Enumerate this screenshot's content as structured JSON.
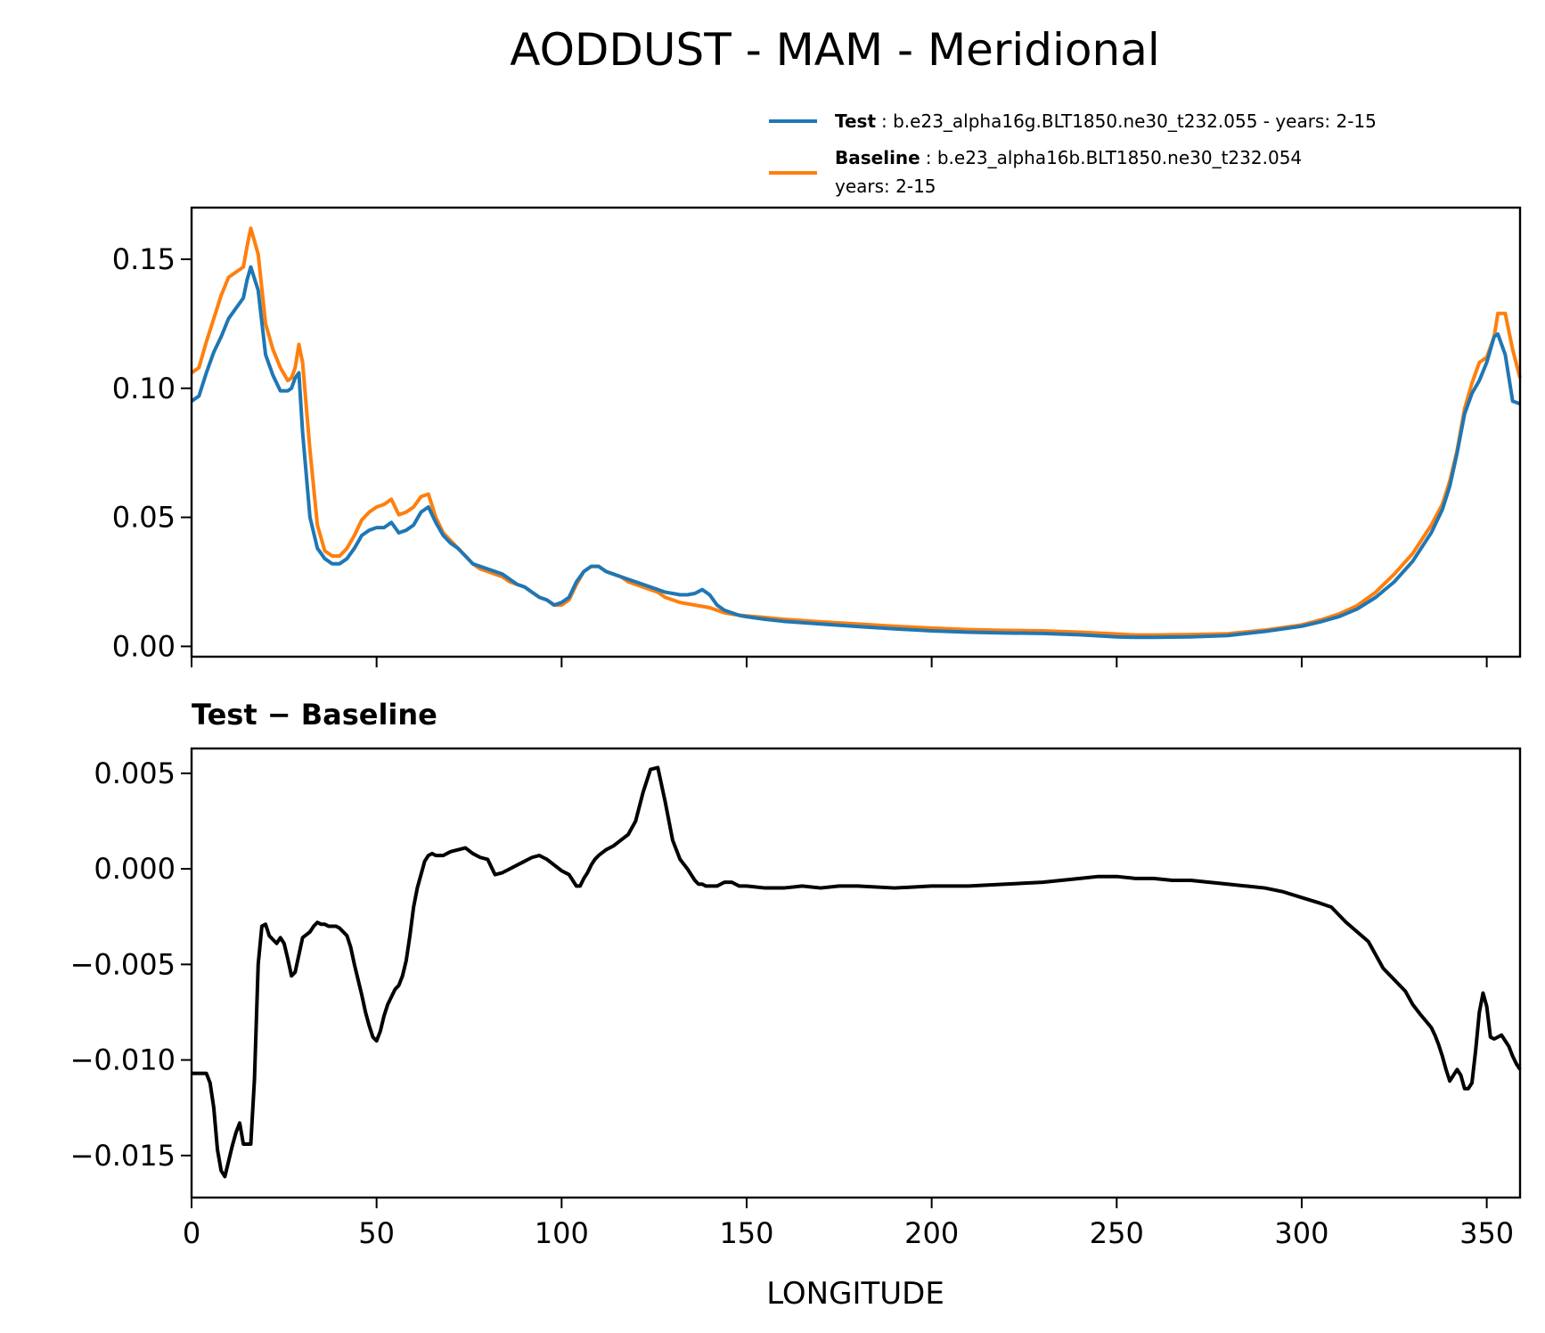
{
  "chart_data": [
    {
      "type": "line",
      "title": "AODDUST - MAM - Meridional",
      "xlabel": "",
      "ylabel": "",
      "xlim": [
        0,
        359
      ],
      "ylim": [
        -0.004,
        0.17
      ],
      "yticks": [
        "0.00",
        "0.05",
        "0.10",
        "0.15"
      ],
      "ytick_values": [
        0.0,
        0.05,
        0.1,
        0.15
      ],
      "xticks": [
        0,
        50,
        100,
        150,
        200,
        250,
        300,
        350
      ],
      "legend": {
        "position": "above-right",
        "entries": [
          {
            "bold": "Test",
            "text": ": b.e23_alpha16g.BLT1850.ne30_t232.055 - years: 2-15",
            "text2": "",
            "color": "#1f77b4"
          },
          {
            "bold": "Baseline",
            "text": ": b.e23_alpha16b.BLT1850.ne30_t232.054",
            "text2": "years: 2-15",
            "color": "#ff7f0e"
          }
        ]
      },
      "x": [
        0,
        2,
        4,
        6,
        8,
        10,
        12,
        14,
        15,
        16,
        18,
        20,
        22,
        24,
        26,
        27,
        28,
        29,
        30,
        32,
        34,
        36,
        38,
        40,
        42,
        44,
        46,
        48,
        50,
        52,
        54,
        56,
        58,
        60,
        62,
        64,
        66,
        68,
        70,
        72,
        74,
        76,
        78,
        80,
        82,
        84,
        86,
        88,
        90,
        92,
        94,
        96,
        98,
        100,
        102,
        104,
        106,
        108,
        110,
        112,
        114,
        116,
        118,
        120,
        122,
        124,
        126,
        128,
        130,
        132,
        134,
        136,
        138,
        140,
        142,
        144,
        146,
        148,
        150,
        155,
        160,
        170,
        180,
        190,
        200,
        210,
        220,
        230,
        240,
        250,
        255,
        260,
        270,
        280,
        290,
        300,
        305,
        310,
        315,
        320,
        325,
        330,
        335,
        338,
        340,
        342,
        344,
        346,
        348,
        350,
        352,
        353,
        355,
        357,
        359
      ],
      "series": [
        {
          "name": "Test",
          "color": "#1f77b4",
          "values": [
            0.095,
            0.097,
            0.106,
            0.114,
            0.12,
            0.127,
            0.131,
            0.135,
            0.142,
            0.147,
            0.138,
            0.113,
            0.105,
            0.099,
            0.099,
            0.1,
            0.104,
            0.106,
            0.083,
            0.05,
            0.038,
            0.034,
            0.032,
            0.032,
            0.034,
            0.038,
            0.043,
            0.045,
            0.046,
            0.046,
            0.048,
            0.044,
            0.045,
            0.047,
            0.052,
            0.054,
            0.048,
            0.043,
            0.04,
            0.038,
            0.035,
            0.032,
            0.031,
            0.03,
            0.029,
            0.028,
            0.026,
            0.024,
            0.023,
            0.021,
            0.019,
            0.018,
            0.016,
            0.017,
            0.019,
            0.025,
            0.029,
            0.031,
            0.031,
            0.029,
            0.028,
            0.027,
            0.026,
            0.025,
            0.024,
            0.023,
            0.022,
            0.021,
            0.0205,
            0.02,
            0.02,
            0.0205,
            0.022,
            0.02,
            0.016,
            0.014,
            0.013,
            0.012,
            0.0115,
            0.0105,
            0.0097,
            0.0087,
            0.0077,
            0.0068,
            0.006,
            0.0055,
            0.0052,
            0.005,
            0.0045,
            0.0037,
            0.0035,
            0.0035,
            0.0037,
            0.0042,
            0.0058,
            0.0078,
            0.0095,
            0.0115,
            0.0145,
            0.019,
            0.025,
            0.033,
            0.044,
            0.053,
            0.062,
            0.075,
            0.09,
            0.098,
            0.103,
            0.11,
            0.12,
            0.121,
            0.113,
            0.095,
            0.094
          ]
        },
        {
          "name": "Baseline",
          "color": "#ff7f0e",
          "values": [
            0.106,
            0.108,
            0.118,
            0.127,
            0.136,
            0.143,
            0.145,
            0.147,
            0.155,
            0.162,
            0.152,
            0.125,
            0.115,
            0.108,
            0.103,
            0.104,
            0.108,
            0.117,
            0.11,
            0.076,
            0.047,
            0.037,
            0.035,
            0.035,
            0.038,
            0.043,
            0.049,
            0.052,
            0.054,
            0.055,
            0.057,
            0.051,
            0.052,
            0.054,
            0.058,
            0.059,
            0.05,
            0.044,
            0.041,
            0.038,
            0.035,
            0.032,
            0.03,
            0.029,
            0.028,
            0.027,
            0.025,
            0.024,
            0.023,
            0.021,
            0.019,
            0.018,
            0.016,
            0.016,
            0.018,
            0.024,
            0.029,
            0.031,
            0.031,
            0.029,
            0.028,
            0.027,
            0.025,
            0.024,
            0.023,
            0.022,
            0.021,
            0.019,
            0.018,
            0.017,
            0.0165,
            0.016,
            0.0155,
            0.015,
            0.014,
            0.013,
            0.0125,
            0.0121,
            0.0118,
            0.0112,
            0.0105,
            0.0095,
            0.0087,
            0.0078,
            0.0071,
            0.0065,
            0.0062,
            0.006,
            0.0055,
            0.0048,
            0.0044,
            0.0044,
            0.0046,
            0.0049,
            0.0063,
            0.0083,
            0.0102,
            0.0125,
            0.0158,
            0.021,
            0.028,
            0.036,
            0.047,
            0.055,
            0.064,
            0.076,
            0.092,
            0.102,
            0.11,
            0.112,
            0.12,
            0.129,
            0.129,
            0.115,
            0.104
          ]
        }
      ]
    },
    {
      "type": "line",
      "title": "Test − Baseline",
      "xlabel": "LONGITUDE",
      "ylabel": "",
      "xlim": [
        0,
        359
      ],
      "ylim": [
        -0.0172,
        0.0063
      ],
      "yticks": [
        "0.005",
        "0.000",
        "−0.005",
        "−0.010",
        "−0.015"
      ],
      "ytick_values": [
        0.005,
        0.0,
        -0.005,
        -0.01,
        -0.015
      ],
      "xticks": [
        0,
        50,
        100,
        150,
        200,
        250,
        300,
        350
      ],
      "x": [
        0,
        2,
        4,
        5,
        6,
        7,
        8,
        9,
        10,
        11,
        12,
        13,
        14,
        15,
        16,
        17,
        18,
        19,
        20,
        21,
        22,
        23,
        24,
        25,
        26,
        27,
        28,
        29,
        30,
        32,
        33,
        34,
        35,
        36,
        37,
        38,
        39,
        40,
        41,
        42,
        43,
        44,
        45,
        46,
        47,
        48,
        49,
        50,
        51,
        52,
        53,
        54,
        55,
        56,
        57,
        58,
        59,
        60,
        61,
        62,
        63,
        64,
        65,
        66,
        67,
        68,
        69,
        70,
        72,
        74,
        76,
        78,
        80,
        82,
        84,
        86,
        88,
        89,
        90,
        91,
        92,
        94,
        96,
        98,
        100,
        102,
        103,
        104,
        105,
        106,
        107,
        108,
        109,
        110,
        112,
        114,
        116,
        118,
        120,
        122,
        124,
        126,
        128,
        130,
        132,
        134,
        135,
        136,
        137,
        138,
        139,
        140,
        141,
        142,
        143,
        144,
        146,
        148,
        150,
        155,
        160,
        165,
        170,
        175,
        180,
        190,
        200,
        210,
        220,
        230,
        240,
        245,
        250,
        255,
        260,
        265,
        270,
        275,
        280,
        285,
        290,
        295,
        300,
        305,
        308,
        310,
        312,
        315,
        318,
        320,
        322,
        325,
        328,
        330,
        332,
        335,
        336,
        337,
        338,
        339,
        340,
        341,
        342,
        343,
        344,
        345,
        346,
        347,
        348,
        349,
        350,
        351,
        352,
        353,
        354,
        355,
        356,
        357,
        358,
        359
      ],
      "values": [
        -0.0107,
        -0.0107,
        -0.0107,
        -0.0112,
        -0.0125,
        -0.0147,
        -0.0158,
        -0.0161,
        -0.0153,
        -0.0145,
        -0.0138,
        -0.0133,
        -0.0144,
        -0.0144,
        -0.0144,
        -0.011,
        -0.005,
        -0.003,
        -0.0029,
        -0.0035,
        -0.0037,
        -0.0039,
        -0.0036,
        -0.0039,
        -0.0047,
        -0.0056,
        -0.0054,
        -0.0045,
        -0.0036,
        -0.0033,
        -0.003,
        -0.0028,
        -0.0029,
        -0.0029,
        -0.003,
        -0.003,
        -0.003,
        -0.0031,
        -0.0033,
        -0.0035,
        -0.0041,
        -0.005,
        -0.0058,
        -0.0066,
        -0.0075,
        -0.0082,
        -0.0088,
        -0.009,
        -0.0085,
        -0.0077,
        -0.0071,
        -0.0067,
        -0.0063,
        -0.0061,
        -0.0056,
        -0.0048,
        -0.0035,
        -0.002,
        -0.001,
        -0.0003,
        0.0004,
        0.0007,
        0.0008,
        0.0007,
        0.0007,
        0.0007,
        0.0008,
        0.0009,
        0.001,
        0.0011,
        0.0008,
        0.0006,
        0.0005,
        -0.0003,
        -0.0002,
        0.0,
        0.0002,
        0.0003,
        0.0004,
        0.0005,
        0.0006,
        0.0007,
        0.0005,
        0.0002,
        -0.0001,
        -0.0003,
        -0.0006,
        -0.0009,
        -0.0009,
        -0.0005,
        -0.0002,
        0.0002,
        0.0005,
        0.0007,
        0.001,
        0.0012,
        0.0015,
        0.0018,
        0.0025,
        0.004,
        0.0052,
        0.0053,
        0.0035,
        0.0015,
        0.0005,
        0.0,
        -0.0003,
        -0.0006,
        -0.0008,
        -0.0008,
        -0.0009,
        -0.0009,
        -0.0009,
        -0.0009,
        -0.0008,
        -0.0007,
        -0.0007,
        -0.0009,
        -0.0009,
        -0.001,
        -0.001,
        -0.0009,
        -0.001,
        -0.0009,
        -0.0009,
        -0.001,
        -0.0009,
        -0.0009,
        -0.0008,
        -0.0007,
        -0.0005,
        -0.0004,
        -0.0004,
        -0.0005,
        -0.0005,
        -0.0006,
        -0.0006,
        -0.0007,
        -0.0008,
        -0.0009,
        -0.001,
        -0.0012,
        -0.0015,
        -0.0018,
        -0.002,
        -0.0024,
        -0.0028,
        -0.0033,
        -0.0038,
        -0.0045,
        -0.0052,
        -0.0058,
        -0.0064,
        -0.0071,
        -0.0076,
        -0.0083,
        -0.0087,
        -0.0092,
        -0.0098,
        -0.0105,
        -0.0111,
        -0.0108,
        -0.0105,
        -0.0108,
        -0.0115,
        -0.0115,
        -0.0112,
        -0.0095,
        -0.0075,
        -0.0065,
        -0.0072,
        -0.0088,
        -0.0089,
        -0.0088,
        -0.0087,
        -0.009,
        -0.0093,
        -0.0098,
        -0.0102,
        -0.0105
      ]
    }
  ]
}
